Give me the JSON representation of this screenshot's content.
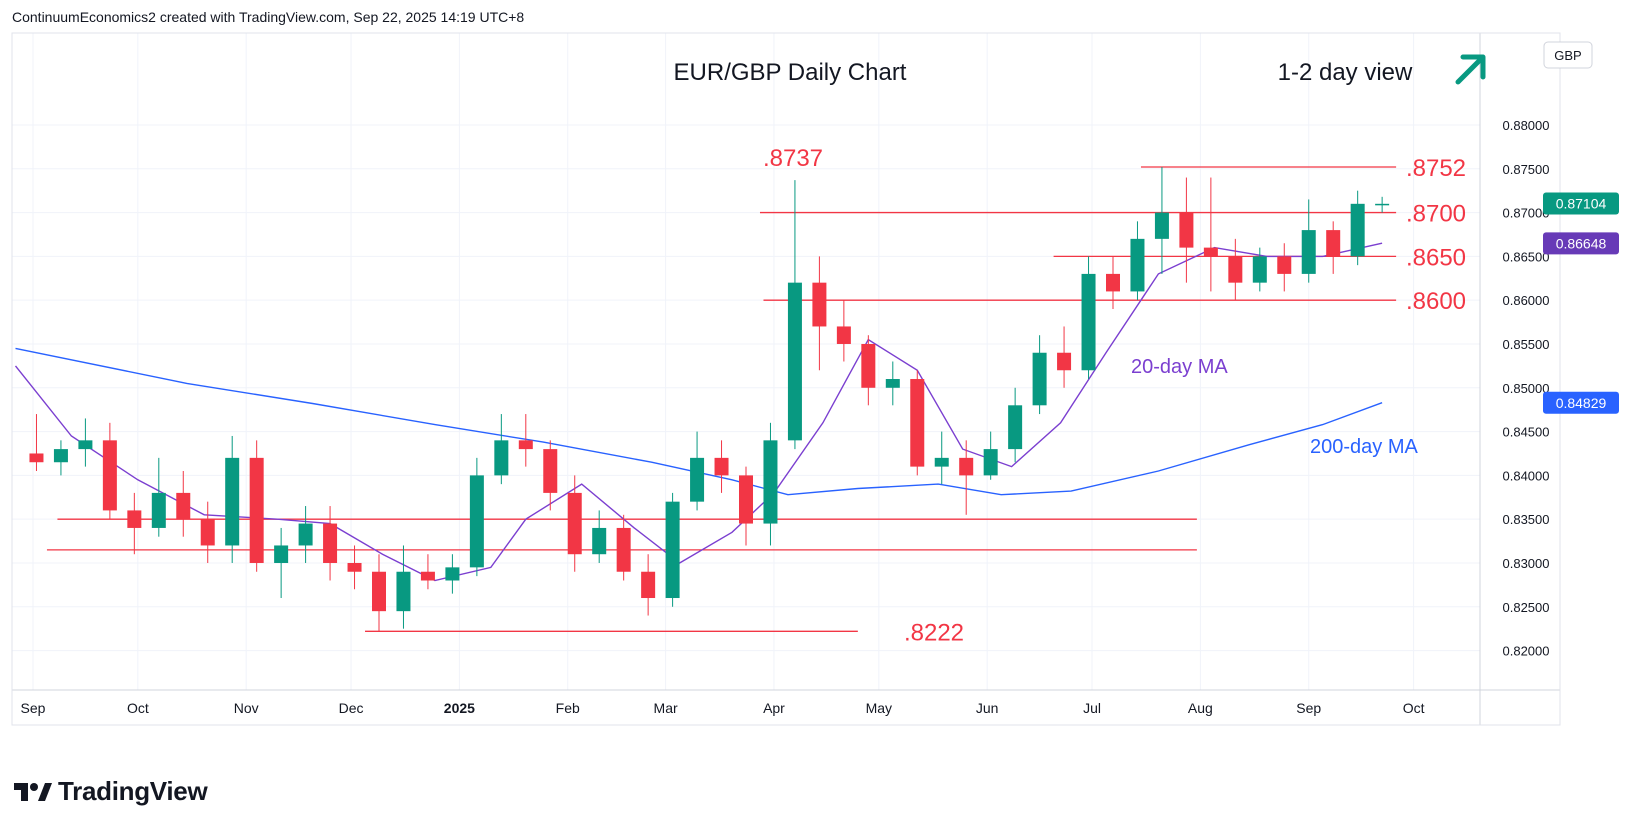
{
  "header": {
    "text": "ContinuumEconomics2 created with TradingView.com, Sep 22, 2025 14:19 UTC+8"
  },
  "footer": {
    "brand": "TradingView"
  },
  "colors": {
    "up": "#089981",
    "down": "#f23645",
    "ma20": "#7b3fd0",
    "ma200": "#2962ff",
    "level": "#f23645",
    "arrow": "#089981",
    "price_badge": "#089981",
    "ma20_badge": "#673ab7",
    "ma200_badge": "#2962ff"
  },
  "chart_data": {
    "type": "candlestick",
    "title": "EUR/GBP Daily Chart",
    "view_label": "1-2 day view",
    "view_icon": "arrow-up-right-icon",
    "currency": "GBP",
    "ylim": [
      0.8155,
      0.8905
    ],
    "y_ticks": [
      "0.88000",
      "0.87500",
      "0.87000",
      "0.86500",
      "0.86000",
      "0.85500",
      "0.85000",
      "0.84500",
      "0.84000",
      "0.83500",
      "0.83000",
      "0.82500",
      "0.82000"
    ],
    "x_labels": [
      "Sep",
      "Oct",
      "Nov",
      "Dec",
      "2025",
      "Feb",
      "Mar",
      "Apr",
      "May",
      "Jun",
      "Jul",
      "Aug",
      "Sep",
      "Oct"
    ],
    "grid": true,
    "current_price": "0.87104",
    "ma20_value": "0.86648",
    "ma200_value": "0.84829",
    "series_labels": [
      "20-day MA",
      "200-day MA"
    ],
    "annotations": [
      ".8737",
      ".8752",
      ".8700",
      ".8650",
      ".8600",
      ".8222"
    ],
    "levels": [
      0.8752,
      0.87,
      0.865,
      0.86,
      0.835,
      0.8315,
      0.8222
    ],
    "candles": [
      {
        "date": "2024-09-02",
        "o": 0.8425,
        "h": 0.847,
        "l": 0.8405,
        "c": 0.8415
      },
      {
        "date": "2024-09-09",
        "o": 0.8415,
        "h": 0.844,
        "l": 0.84,
        "c": 0.843
      },
      {
        "date": "2024-09-16",
        "o": 0.843,
        "h": 0.8465,
        "l": 0.841,
        "c": 0.844
      },
      {
        "date": "2024-09-23",
        "o": 0.844,
        "h": 0.846,
        "l": 0.835,
        "c": 0.836
      },
      {
        "date": "2024-09-30",
        "o": 0.836,
        "h": 0.838,
        "l": 0.831,
        "c": 0.834
      },
      {
        "date": "2024-10-07",
        "o": 0.834,
        "h": 0.842,
        "l": 0.833,
        "c": 0.838
      },
      {
        "date": "2024-10-14",
        "o": 0.838,
        "h": 0.8405,
        "l": 0.833,
        "c": 0.835
      },
      {
        "date": "2024-10-21",
        "o": 0.835,
        "h": 0.837,
        "l": 0.83,
        "c": 0.832
      },
      {
        "date": "2024-10-28",
        "o": 0.832,
        "h": 0.8445,
        "l": 0.83,
        "c": 0.842
      },
      {
        "date": "2024-11-04",
        "o": 0.842,
        "h": 0.844,
        "l": 0.829,
        "c": 0.83
      },
      {
        "date": "2024-11-11",
        "o": 0.83,
        "h": 0.834,
        "l": 0.826,
        "c": 0.832
      },
      {
        "date": "2024-11-18",
        "o": 0.832,
        "h": 0.8365,
        "l": 0.83,
        "c": 0.8345
      },
      {
        "date": "2024-11-25",
        "o": 0.8345,
        "h": 0.8365,
        "l": 0.828,
        "c": 0.83
      },
      {
        "date": "2024-12-02",
        "o": 0.83,
        "h": 0.832,
        "l": 0.827,
        "c": 0.829
      },
      {
        "date": "2024-12-09",
        "o": 0.829,
        "h": 0.831,
        "l": 0.8222,
        "c": 0.8245
      },
      {
        "date": "2024-12-16",
        "o": 0.8245,
        "h": 0.832,
        "l": 0.8225,
        "c": 0.829
      },
      {
        "date": "2024-12-23",
        "o": 0.829,
        "h": 0.831,
        "l": 0.827,
        "c": 0.828
      },
      {
        "date": "2024-12-30",
        "o": 0.828,
        "h": 0.831,
        "l": 0.8265,
        "c": 0.8295
      },
      {
        "date": "2025-01-06",
        "o": 0.8295,
        "h": 0.842,
        "l": 0.8285,
        "c": 0.84
      },
      {
        "date": "2025-01-13",
        "o": 0.84,
        "h": 0.847,
        "l": 0.839,
        "c": 0.844
      },
      {
        "date": "2025-01-20",
        "o": 0.844,
        "h": 0.847,
        "l": 0.841,
        "c": 0.843
      },
      {
        "date": "2025-01-27",
        "o": 0.843,
        "h": 0.844,
        "l": 0.836,
        "c": 0.838
      },
      {
        "date": "2025-02-03",
        "o": 0.838,
        "h": 0.84,
        "l": 0.829,
        "c": 0.831
      },
      {
        "date": "2025-02-10",
        "o": 0.831,
        "h": 0.836,
        "l": 0.83,
        "c": 0.834
      },
      {
        "date": "2025-02-17",
        "o": 0.834,
        "h": 0.8355,
        "l": 0.828,
        "c": 0.829
      },
      {
        "date": "2025-02-24",
        "o": 0.829,
        "h": 0.831,
        "l": 0.824,
        "c": 0.826
      },
      {
        "date": "2025-03-03",
        "o": 0.826,
        "h": 0.838,
        "l": 0.825,
        "c": 0.837
      },
      {
        "date": "2025-03-10",
        "o": 0.837,
        "h": 0.845,
        "l": 0.836,
        "c": 0.842
      },
      {
        "date": "2025-03-17",
        "o": 0.842,
        "h": 0.844,
        "l": 0.838,
        "c": 0.84
      },
      {
        "date": "2025-03-24",
        "o": 0.84,
        "h": 0.841,
        "l": 0.832,
        "c": 0.8345
      },
      {
        "date": "2025-03-31",
        "o": 0.8345,
        "h": 0.846,
        "l": 0.832,
        "c": 0.844
      },
      {
        "date": "2025-04-07",
        "o": 0.844,
        "h": 0.8737,
        "l": 0.843,
        "c": 0.862
      },
      {
        "date": "2025-04-14",
        "o": 0.862,
        "h": 0.865,
        "l": 0.852,
        "c": 0.857
      },
      {
        "date": "2025-04-21",
        "o": 0.857,
        "h": 0.86,
        "l": 0.853,
        "c": 0.855
      },
      {
        "date": "2025-04-28",
        "o": 0.855,
        "h": 0.856,
        "l": 0.848,
        "c": 0.85
      },
      {
        "date": "2025-05-05",
        "o": 0.85,
        "h": 0.853,
        "l": 0.848,
        "c": 0.851
      },
      {
        "date": "2025-05-12",
        "o": 0.851,
        "h": 0.852,
        "l": 0.84,
        "c": 0.841
      },
      {
        "date": "2025-05-19",
        "o": 0.841,
        "h": 0.845,
        "l": 0.839,
        "c": 0.842
      },
      {
        "date": "2025-05-26",
        "o": 0.842,
        "h": 0.844,
        "l": 0.8355,
        "c": 0.84
      },
      {
        "date": "2025-06-02",
        "o": 0.84,
        "h": 0.845,
        "l": 0.8395,
        "c": 0.843
      },
      {
        "date": "2025-06-09",
        "o": 0.843,
        "h": 0.85,
        "l": 0.8415,
        "c": 0.848
      },
      {
        "date": "2025-06-16",
        "o": 0.848,
        "h": 0.856,
        "l": 0.847,
        "c": 0.854
      },
      {
        "date": "2025-06-23",
        "o": 0.854,
        "h": 0.857,
        "l": 0.85,
        "c": 0.852
      },
      {
        "date": "2025-06-30",
        "o": 0.852,
        "h": 0.865,
        "l": 0.851,
        "c": 0.863
      },
      {
        "date": "2025-07-07",
        "o": 0.863,
        "h": 0.865,
        "l": 0.859,
        "c": 0.861
      },
      {
        "date": "2025-07-14",
        "o": 0.861,
        "h": 0.869,
        "l": 0.86,
        "c": 0.867
      },
      {
        "date": "2025-07-21",
        "o": 0.867,
        "h": 0.8752,
        "l": 0.863,
        "c": 0.87
      },
      {
        "date": "2025-07-28",
        "o": 0.87,
        "h": 0.874,
        "l": 0.862,
        "c": 0.866
      },
      {
        "date": "2025-08-04",
        "o": 0.866,
        "h": 0.874,
        "l": 0.861,
        "c": 0.865
      },
      {
        "date": "2025-08-11",
        "o": 0.865,
        "h": 0.867,
        "l": 0.86,
        "c": 0.862
      },
      {
        "date": "2025-08-18",
        "o": 0.862,
        "h": 0.866,
        "l": 0.861,
        "c": 0.865
      },
      {
        "date": "2025-08-25",
        "o": 0.865,
        "h": 0.8665,
        "l": 0.861,
        "c": 0.863
      },
      {
        "date": "2025-09-01",
        "o": 0.863,
        "h": 0.8715,
        "l": 0.862,
        "c": 0.868
      },
      {
        "date": "2025-09-08",
        "o": 0.868,
        "h": 0.869,
        "l": 0.863,
        "c": 0.865
      },
      {
        "date": "2025-09-15",
        "o": 0.865,
        "h": 0.8725,
        "l": 0.864,
        "c": 0.871
      },
      {
        "date": "2025-09-22",
        "o": 0.871,
        "h": 0.8718,
        "l": 0.87,
        "c": 0.871
      }
    ]
  }
}
